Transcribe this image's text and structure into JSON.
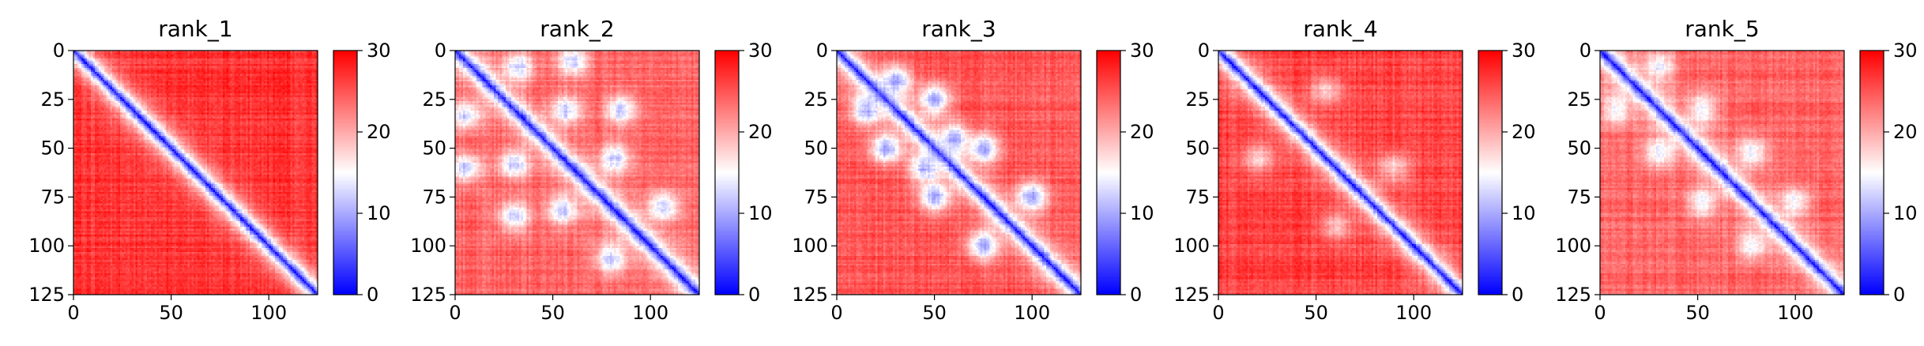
{
  "figure": {
    "panel_titles": [
      "rank_1",
      "rank_2",
      "rank_3",
      "rank_4",
      "rank_5"
    ]
  },
  "chart_data": [
    {
      "type": "heatmap",
      "title": "rank_1",
      "xlabel": "",
      "ylabel": "",
      "xlim": [
        0,
        125
      ],
      "ylim": [
        125,
        0
      ],
      "x_ticks": [
        "0",
        "50",
        "100"
      ],
      "y_ticks": [
        "0",
        "25",
        "50",
        "75",
        "100",
        "125"
      ],
      "colorbar": {
        "min": 0,
        "max": 30,
        "ticks": [
          "0",
          "10",
          "20",
          "30"
        ],
        "colormap": "bwr",
        "low_color": "#0000ff",
        "mid_color": "#ffffff",
        "high_color": "#ff0000"
      },
      "pattern": {
        "diagonal_value": 1,
        "diagonal_halfwidth": 6,
        "background_value": 27,
        "off_diagonal_minimum_value": 27,
        "local_minima": []
      }
    },
    {
      "type": "heatmap",
      "title": "rank_2",
      "xlabel": "",
      "ylabel": "",
      "xlim": [
        0,
        125
      ],
      "ylim": [
        125,
        0
      ],
      "x_ticks": [
        "0",
        "50",
        "100"
      ],
      "y_ticks": [
        "0",
        "25",
        "50",
        "75",
        "100",
        "125"
      ],
      "colorbar": {
        "min": 0,
        "max": 30,
        "ticks": [
          "0",
          "10",
          "20",
          "30"
        ],
        "colormap": "bwr",
        "low_color": "#0000ff",
        "mid_color": "#ffffff",
        "high_color": "#ff0000"
      },
      "pattern": {
        "diagonal_value": 1,
        "diagonal_halfwidth": 6,
        "background_value": 24,
        "off_diagonal_minimum_value": 12,
        "local_minima": [
          [
            33,
            5
          ],
          [
            8,
            32
          ],
          [
            58,
            30
          ],
          [
            30,
            57
          ],
          [
            82,
            55
          ],
          [
            55,
            82
          ],
          [
            107,
            80
          ],
          [
            80,
            107
          ],
          [
            60,
            5
          ],
          [
            5,
            60
          ],
          [
            85,
            30
          ],
          [
            30,
            85
          ]
        ]
      }
    },
    {
      "type": "heatmap",
      "title": "rank_3",
      "xlabel": "",
      "ylabel": "",
      "xlim": [
        0,
        125
      ],
      "ylim": [
        125,
        0
      ],
      "x_ticks": [
        "0",
        "50",
        "100"
      ],
      "y_ticks": [
        "0",
        "25",
        "50",
        "75",
        "100",
        "125"
      ],
      "colorbar": {
        "min": 0,
        "max": 30,
        "ticks": [
          "0",
          "10",
          "20",
          "30"
        ],
        "colormap": "bwr",
        "low_color": "#0000ff",
        "mid_color": "#ffffff",
        "high_color": "#ff0000"
      },
      "pattern": {
        "diagonal_value": 1,
        "diagonal_halfwidth": 6,
        "background_value": 25,
        "off_diagonal_minimum_value": 10,
        "local_minima": [
          [
            50,
            25
          ],
          [
            25,
            50
          ],
          [
            75,
            50
          ],
          [
            50,
            75
          ],
          [
            100,
            75
          ],
          [
            75,
            100
          ],
          [
            30,
            15
          ],
          [
            15,
            30
          ],
          [
            60,
            45
          ],
          [
            45,
            60
          ]
        ]
      }
    },
    {
      "type": "heatmap",
      "title": "rank_4",
      "xlabel": "",
      "ylabel": "",
      "xlim": [
        0,
        125
      ],
      "ylim": [
        125,
        0
      ],
      "x_ticks": [
        "0",
        "50",
        "100"
      ],
      "y_ticks": [
        "0",
        "25",
        "50",
        "75",
        "100",
        "125"
      ],
      "colorbar": {
        "min": 0,
        "max": 30,
        "ticks": [
          "0",
          "10",
          "20",
          "30"
        ],
        "colormap": "bwr",
        "low_color": "#0000ff",
        "mid_color": "#ffffff",
        "high_color": "#ff0000"
      },
      "pattern": {
        "diagonal_value": 1,
        "diagonal_halfwidth": 6,
        "background_value": 26,
        "off_diagonal_minimum_value": 18,
        "local_minima": [
          [
            55,
            20
          ],
          [
            20,
            55
          ],
          [
            90,
            60
          ],
          [
            60,
            90
          ]
        ]
      }
    },
    {
      "type": "heatmap",
      "title": "rank_5",
      "xlabel": "",
      "ylabel": "",
      "xlim": [
        0,
        125
      ],
      "ylim": [
        125,
        0
      ],
      "x_ticks": [
        "0",
        "50",
        "100"
      ],
      "y_ticks": [
        "0",
        "25",
        "50",
        "75",
        "100",
        "125"
      ],
      "colorbar": {
        "min": 0,
        "max": 30,
        "ticks": [
          "0",
          "10",
          "20",
          "30"
        ],
        "colormap": "bwr",
        "low_color": "#0000ff",
        "mid_color": "#ffffff",
        "high_color": "#ff0000"
      },
      "pattern": {
        "diagonal_value": 1,
        "diagonal_halfwidth": 6,
        "background_value": 24,
        "off_diagonal_minimum_value": 14,
        "local_minima": [
          [
            52,
            30
          ],
          [
            30,
            52
          ],
          [
            78,
            52
          ],
          [
            52,
            78
          ],
          [
            30,
            8
          ],
          [
            8,
            30
          ],
          [
            100,
            78
          ],
          [
            78,
            100
          ]
        ]
      }
    }
  ]
}
